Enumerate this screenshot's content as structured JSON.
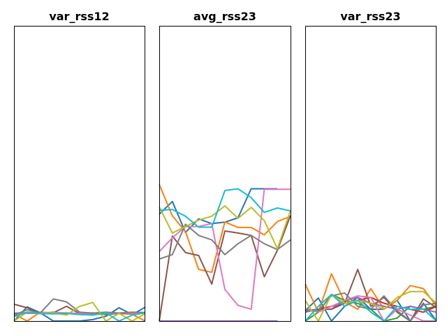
{
  "chart_data": [
    {
      "type": "line",
      "title": "var_rss12",
      "xlabel": "",
      "ylabel": "",
      "grid": false,
      "xlim": [
        0,
        10
      ],
      "ylim": [
        0,
        1
      ],
      "series": [
        {
          "color": "#1f77b4",
          "values": [
            0.0,
            0.048,
            0.028,
            0.0,
            0.0,
            0.0,
            0.005,
            0.016,
            0.045,
            0.022,
            0.047
          ]
        },
        {
          "color": "#ff7f0e",
          "values": [
            0.024,
            0.0,
            0.03,
            0.028,
            0.028,
            0.024,
            0.022,
            0.024,
            0.025,
            0.023,
            0.0
          ]
        },
        {
          "color": "#2ca02c",
          "values": [
            0.02,
            0.03,
            0.026,
            0.03,
            0.025,
            0.026,
            0.028,
            0.022,
            0.026,
            0.026,
            0.026
          ]
        },
        {
          "color": "#d62728",
          "values": [
            0.027,
            0.026,
            0.027,
            0.026,
            0.026,
            0.026,
            0.026,
            0.026,
            0.026,
            0.026,
            0.026
          ]
        },
        {
          "color": "#9467bd",
          "values": [
            0.027,
            0.026,
            0.027,
            0.026,
            0.026,
            0.026,
            0.026,
            0.026,
            0.026,
            0.026,
            0.026
          ]
        },
        {
          "color": "#8c564b",
          "values": [
            0.057,
            0.045,
            0.025,
            0.028,
            0.05,
            0.025,
            0.027,
            0.027,
            0.027,
            0.027,
            0.027
          ]
        },
        {
          "color": "#e377c2",
          "values": [
            0.022,
            0.027,
            0.028,
            0.029,
            0.027,
            0.026,
            0.022,
            0.026,
            0.028,
            0.027,
            0.025
          ]
        },
        {
          "color": "#7f7f7f",
          "values": [
            0.02,
            0.038,
            0.027,
            0.075,
            0.065,
            0.03,
            0.027,
            0.03,
            0.027,
            0.03,
            0.029
          ]
        },
        {
          "color": "#bcbd22",
          "values": [
            0.0,
            0.03,
            0.025,
            0.028,
            0.02,
            0.05,
            0.063,
            0.0,
            0.026,
            0.0,
            0.025
          ]
        },
        {
          "color": "#17becf",
          "values": [
            0.015,
            0.03,
            0.025,
            0.024,
            0.026,
            0.022,
            0.02,
            0.028,
            0.0,
            0.02,
            0.028
          ]
        }
      ]
    },
    {
      "type": "line",
      "title": "avg_rss23",
      "xlabel": "",
      "ylabel": "",
      "grid": false,
      "xlim": [
        0,
        10
      ],
      "ylim": [
        0,
        1
      ],
      "series": [
        {
          "color": "#1f77b4",
          "values": [
            0.362,
            0.405,
            0.3,
            0.346,
            0.33,
            0.335,
            0.35,
            0.448,
            0.448,
            0.448,
            null
          ]
        },
        {
          "color": "#ff7f0e",
          "values": [
            0.463,
            0.356,
            0.303,
            0.175,
            0.165,
            0.336,
            0.317,
            0.317,
            0.292,
            0.337,
            0.355
          ]
        },
        {
          "color": "#2ca02c",
          "values": [
            0.0,
            0.0,
            0.0,
            0.0,
            0.0,
            0.0,
            0.0,
            0.0,
            0.0,
            0.0,
            null
          ]
        },
        {
          "color": "#d62728",
          "values": [
            0.0,
            0.0,
            0.0,
            0.0,
            0.0,
            0.0,
            0.0,
            0.0,
            0.0,
            0.0,
            null
          ]
        },
        {
          "color": "#9467bd",
          "values": [
            0.0,
            0.0,
            0.0,
            0.0,
            0.0,
            0.0,
            0.0,
            0.0,
            0.0,
            0.0,
            null
          ]
        },
        {
          "color": "#8c564b",
          "values": [
            0.0,
            0.288,
            0.232,
            0.222,
            0.125,
            0.305,
            0.298,
            0.29,
            0.15,
            0.24,
            0.358
          ]
        },
        {
          "color": "#e377c2",
          "values": [
            0.235,
            0.282,
            0.32,
            0.32,
            0.33,
            0.107,
            0.053,
            0.04,
            0.446,
            0.446,
            0.446
          ]
        },
        {
          "color": "#7f7f7f",
          "values": [
            0.21,
            0.225,
            0.328,
            0.29,
            0.275,
            0.225,
            0.262,
            0.29,
            0.262,
            0.242,
            0.275
          ]
        },
        {
          "color": "#bcbd22",
          "values": [
            0.387,
            0.298,
            0.32,
            0.342,
            0.355,
            0.39,
            0.348,
            0.385,
            0.34,
            0.245,
            0.375
          ]
        },
        {
          "color": "#17becf",
          "values": [
            0.375,
            0.378,
            0.355,
            0.318,
            0.318,
            0.442,
            0.448,
            0.418,
            0.368,
            0.383,
            0.373
          ]
        }
      ]
    },
    {
      "type": "line",
      "title": "var_rss23",
      "xlabel": "",
      "ylabel": "",
      "grid": false,
      "xlim": [
        0,
        10
      ],
      "ylim": [
        0,
        1
      ],
      "series": [
        {
          "color": "#1f77b4",
          "values": [
            0.035,
            0.078,
            0.0,
            0.05,
            0.08,
            0.04,
            0.04,
            0.07,
            0.0,
            0.06,
            0.0
          ]
        },
        {
          "color": "#ff7f0e",
          "values": [
            0.125,
            0.03,
            0.16,
            0.065,
            0.04,
            0.11,
            0.04,
            0.07,
            0.12,
            0.11,
            0.05
          ]
        },
        {
          "color": "#2ca02c",
          "values": [
            0.0,
            0.03,
            0.09,
            0.07,
            0.06,
            0.04,
            0.0,
            0.01,
            0.05,
            0.04,
            0.05
          ]
        },
        {
          "color": "#d62728",
          "values": [
            0.035,
            0.04,
            0.05,
            0.06,
            0.07,
            0.08,
            0.06,
            0.05,
            0.04,
            0.03,
            0.05
          ]
        },
        {
          "color": "#9467bd",
          "values": [
            0.03,
            0.04,
            0.04,
            0.07,
            0.08,
            0.06,
            0.05,
            0.04,
            0.05,
            0.04,
            0.03
          ]
        },
        {
          "color": "#8c564b",
          "values": [
            0.035,
            0.04,
            0.04,
            0.06,
            0.175,
            0.05,
            0.08,
            0.03,
            0.0,
            0.075,
            0.045
          ]
        },
        {
          "color": "#e377c2",
          "values": [
            0.04,
            0.03,
            0.05,
            0.07,
            0.085,
            0.08,
            0.0,
            0.04,
            0.02,
            0.0,
            0.0
          ]
        },
        {
          "color": "#7f7f7f",
          "values": [
            0.04,
            0.035,
            0.085,
            0.095,
            0.05,
            0.04,
            0.085,
            0.035,
            0.0,
            0.055,
            0.06
          ]
        },
        {
          "color": "#bcbd22",
          "values": [
            0.07,
            0.0,
            0.09,
            0.06,
            0.07,
            0.06,
            0.04,
            0.08,
            0.1,
            0.1,
            0.06
          ]
        },
        {
          "color": "#17becf",
          "values": [
            0.0,
            0.05,
            0.09,
            0.05,
            0.07,
            0.03,
            0.0,
            0.05,
            0.04,
            0.04,
            0.0
          ]
        }
      ]
    }
  ]
}
